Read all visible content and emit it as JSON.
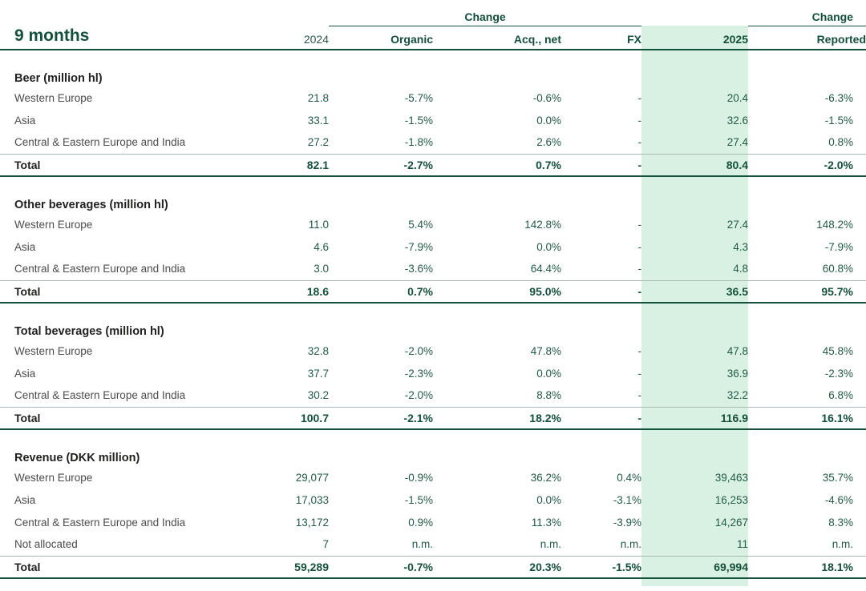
{
  "colors": {
    "accent_green": "#14503a",
    "value_green": "#235b45",
    "label_gray": "#4c4c4c",
    "highlight_band": "#d9f1e3"
  },
  "header": {
    "title": "9 months",
    "change_label": "Change",
    "columns": [
      "2024",
      "Organic",
      "Acq., net",
      "FX",
      "2025",
      "Reported"
    ]
  },
  "sections": [
    {
      "title": "Beer (million hl)",
      "rows": [
        {
          "cells": [
            "Western Europe",
            "21.8",
            "-5.7%",
            "-0.6%",
            "-",
            "20.4",
            "-6.3%"
          ]
        },
        {
          "cells": [
            "Asia",
            "33.1",
            "-1.5%",
            "0.0%",
            "-",
            "32.6",
            "-1.5%"
          ]
        },
        {
          "cells": [
            "Central & Eastern Europe and India",
            "27.2",
            "-1.8%",
            "2.6%",
            "-",
            "27.4",
            "0.8%"
          ]
        }
      ],
      "total": {
        "cells": [
          "Total",
          "82.1",
          "-2.7%",
          "0.7%",
          "-",
          "80.4",
          "-2.0%"
        ]
      }
    },
    {
      "title": "Other beverages (million hl)",
      "rows": [
        {
          "cells": [
            "Western Europe",
            "11.0",
            "5.4%",
            "142.8%",
            "-",
            "27.4",
            "148.2%"
          ]
        },
        {
          "cells": [
            "Asia",
            "4.6",
            "-7.9%",
            "0.0%",
            "-",
            "4.3",
            "-7.9%"
          ]
        },
        {
          "cells": [
            "Central & Eastern Europe and India",
            "3.0",
            "-3.6%",
            "64.4%",
            "-",
            "4.8",
            "60.8%"
          ]
        }
      ],
      "total": {
        "cells": [
          "Total",
          "18.6",
          "0.7%",
          "95.0%",
          "-",
          "36.5",
          "95.7%"
        ]
      }
    },
    {
      "title": "Total beverages (million hl)",
      "rows": [
        {
          "cells": [
            "Western Europe",
            "32.8",
            "-2.0%",
            "47.8%",
            "-",
            "47.8",
            "45.8%"
          ]
        },
        {
          "cells": [
            "Asia",
            "37.7",
            "-2.3%",
            "0.0%",
            "-",
            "36.9",
            "-2.3%"
          ]
        },
        {
          "cells": [
            "Central & Eastern Europe and India",
            "30.2",
            "-2.0%",
            "8.8%",
            "-",
            "32.2",
            "6.8%"
          ]
        }
      ],
      "total": {
        "cells": [
          "Total",
          "100.7",
          "-2.1%",
          "18.2%",
          "-",
          "116.9",
          "16.1%"
        ]
      }
    },
    {
      "title": "Revenue (DKK million)",
      "rows": [
        {
          "cells": [
            "Western Europe",
            "29,077",
            "-0.9%",
            "36.2%",
            "0.4%",
            "39,463",
            "35.7%"
          ]
        },
        {
          "cells": [
            "Asia",
            "17,033",
            "-1.5%",
            "0.0%",
            "-3.1%",
            "16,253",
            "-4.6%"
          ]
        },
        {
          "cells": [
            "Central & Eastern Europe and India",
            "13,172",
            "0.9%",
            "11.3%",
            "-3.9%",
            "14,267",
            "8.3%"
          ]
        },
        {
          "cells": [
            "Not allocated",
            "7",
            "n.m.",
            "n.m.",
            "n.m.",
            "11",
            "n.m."
          ]
        }
      ],
      "total": {
        "cells": [
          "Total",
          "59,289",
          "-0.7%",
          "20.3%",
          "-1.5%",
          "69,994",
          "18.1%"
        ]
      }
    }
  ]
}
